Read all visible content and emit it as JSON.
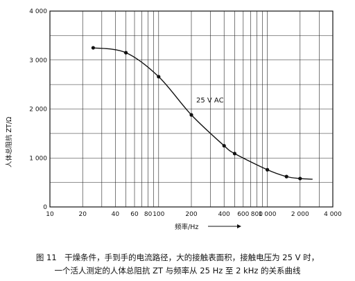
{
  "chart_data": {
    "type": "line",
    "xscale": "log",
    "xlim": [
      10,
      4000
    ],
    "ylim": [
      0,
      4000
    ],
    "grid": true,
    "x_ticks": [
      "10",
      "20",
      "40",
      "60",
      "80",
      "100",
      "200",
      "400",
      "600",
      "800",
      "1 000",
      "2 000",
      "4 000"
    ],
    "x_tick_values": [
      10,
      20,
      40,
      60,
      80,
      100,
      200,
      400,
      600,
      800,
      1000,
      2000,
      4000
    ],
    "y_ticks": [
      "0",
      "1 000",
      "2 000",
      "3 000",
      "4 000"
    ],
    "y_tick_values": [
      0,
      1000,
      2000,
      3000,
      4000
    ],
    "xlabel": "频率/Hz",
    "ylabel": "人体总阻抗 ZT/Ω",
    "annotation": "25 V AC",
    "series": [
      {
        "points": [
          {
            "x": 25,
            "y": 3250
          },
          {
            "x": 50,
            "y": 3150
          },
          {
            "x": 100,
            "y": 2660
          },
          {
            "x": 200,
            "y": 1880
          },
          {
            "x": 400,
            "y": 1250
          },
          {
            "x": 500,
            "y": 1090
          },
          {
            "x": 1000,
            "y": 760
          },
          {
            "x": 1500,
            "y": 620
          },
          {
            "x": 2000,
            "y": 580
          }
        ]
      }
    ]
  },
  "caption": {
    "line1": "图 11　干燥条件，手到手的电流路径，大的接触表面积，接触电压为 25 V 时，",
    "line2": "一个活人测定的人体总阻抗 ZT 与频率从 25 Hz 至 2 kHz 的关系曲线"
  }
}
